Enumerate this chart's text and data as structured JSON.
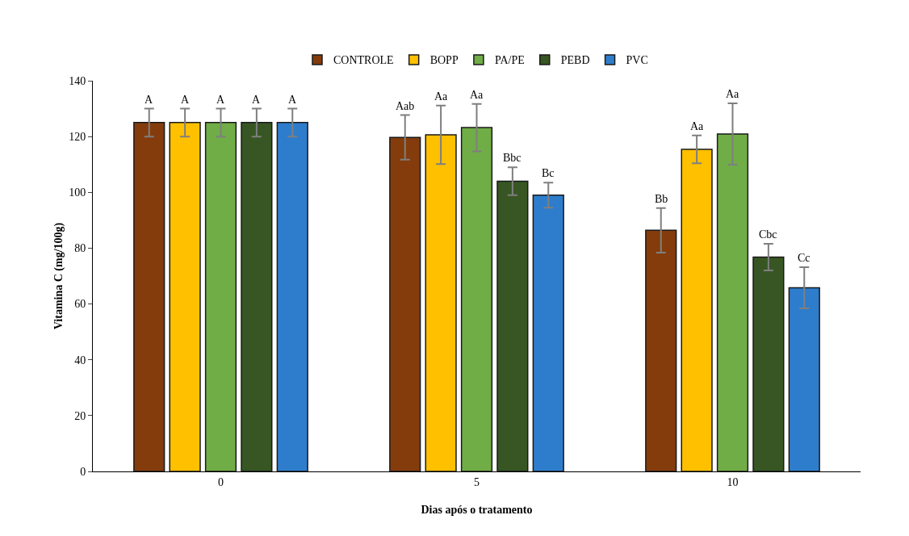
{
  "chart_data": {
    "type": "bar",
    "xlabel": "Dias após o tratamento",
    "ylabel": "Vitamina C (mg/100g)",
    "categories": [
      "0",
      "5",
      "10"
    ],
    "ylim": [
      0,
      140
    ],
    "yticks": [
      0,
      20,
      40,
      60,
      80,
      100,
      120,
      140
    ],
    "grid": false,
    "legend": "top",
    "series": [
      {
        "name": "CONTROLE",
        "color": "#843c0c",
        "values": [
          125,
          119.7,
          86.4
        ],
        "errors": [
          5,
          8,
          8
        ],
        "value_labels": [
          "A",
          "Aab",
          "Bb"
        ]
      },
      {
        "name": "BOPP",
        "color": "#ffc000",
        "values": [
          125,
          120.6,
          115.4
        ],
        "errors": [
          5,
          10.5,
          5
        ],
        "value_labels": [
          "A",
          "Aa",
          "Aa"
        ]
      },
      {
        "name": "PA/PE",
        "color": "#70ad47",
        "values": [
          125,
          123.2,
          120.9
        ],
        "errors": [
          5,
          8.5,
          11
        ],
        "value_labels": [
          "A",
          "Aa",
          "Aa"
        ]
      },
      {
        "name": "PEBD",
        "color": "#375623",
        "values": [
          125,
          104,
          76.8
        ],
        "errors": [
          5,
          5,
          4.8
        ],
        "value_labels": [
          "A",
          "Bbc",
          "Cbc"
        ]
      },
      {
        "name": "PVC",
        "color": "#2e7dcc",
        "values": [
          125,
          99,
          65.8
        ],
        "errors": [
          5,
          4.5,
          7.4
        ],
        "value_labels": [
          "A",
          "Bc",
          "Cc"
        ]
      }
    ]
  }
}
